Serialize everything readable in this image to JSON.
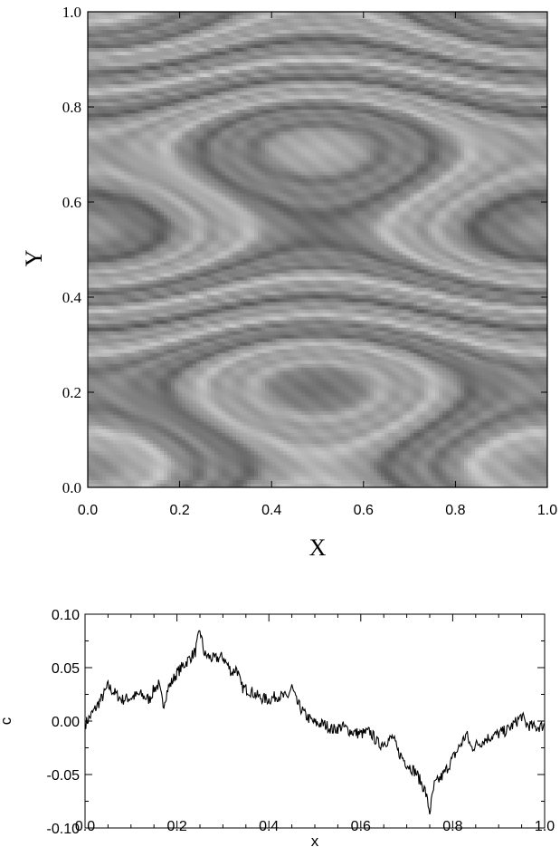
{
  "chart_data": [
    {
      "type": "heatmap",
      "title": "",
      "xlabel": "X",
      "ylabel": "Y",
      "xlim": [
        0.0,
        1.0
      ],
      "ylim": [
        0.0,
        1.0
      ],
      "x_ticks": [
        "0.0",
        "0.2",
        "0.4",
        "0.6",
        "0.8",
        "1.0"
      ],
      "y_ticks": [
        "0.0",
        "0.2",
        "0.4",
        "0.6",
        "0.8",
        "1.0"
      ],
      "colormap": "grayscale",
      "grid": false,
      "legend": "none",
      "description_of_field": "layered gray bands; tongue-like folds pointing right near y=0.5 and pointing left near y=0.0 and y=1.0, sloped dark and light streaks between them"
    },
    {
      "type": "line",
      "title": "",
      "xlabel": "x",
      "ylabel": "c",
      "xlim": [
        0.0,
        1.0
      ],
      "ylim": [
        -0.1,
        0.1
      ],
      "x_ticks": [
        "0.0",
        "0.2",
        "0.4",
        "0.6",
        "0.8",
        "1.0"
      ],
      "y_ticks": [
        "0.10",
        "0.05",
        "0.00",
        "-0.05",
        "-0.10"
      ],
      "grid": false,
      "legend": "none",
      "series": [
        {
          "color": "#000000",
          "x": [
            0.0,
            0.02,
            0.04,
            0.05,
            0.06,
            0.08,
            0.1,
            0.12,
            0.14,
            0.15,
            0.16,
            0.17,
            0.18,
            0.2,
            0.22,
            0.24,
            0.25,
            0.26,
            0.28,
            0.3,
            0.32,
            0.33,
            0.34,
            0.36,
            0.38,
            0.4,
            0.42,
            0.44,
            0.45,
            0.46,
            0.48,
            0.5,
            0.52,
            0.54,
            0.56,
            0.58,
            0.6,
            0.62,
            0.64,
            0.66,
            0.67,
            0.68,
            0.7,
            0.72,
            0.74,
            0.75,
            0.76,
            0.78,
            0.8,
            0.82,
            0.83,
            0.84,
            0.86,
            0.88,
            0.9,
            0.92,
            0.94,
            0.95,
            0.96,
            0.98,
            1.0
          ],
          "y": [
            -0.003,
            0.01,
            0.024,
            0.033,
            0.028,
            0.02,
            0.022,
            0.025,
            0.02,
            0.03,
            0.034,
            0.015,
            0.03,
            0.045,
            0.055,
            0.065,
            0.085,
            0.062,
            0.058,
            0.06,
            0.045,
            0.05,
            0.032,
            0.028,
            0.022,
            0.02,
            0.024,
            0.022,
            0.032,
            0.018,
            0.005,
            -0.002,
            -0.003,
            -0.008,
            -0.005,
            -0.01,
            -0.012,
            -0.01,
            -0.022,
            -0.018,
            -0.015,
            -0.028,
            -0.04,
            -0.048,
            -0.065,
            -0.085,
            -0.06,
            -0.05,
            -0.035,
            -0.02,
            -0.012,
            -0.025,
            -0.02,
            -0.015,
            -0.012,
            -0.008,
            0.0,
            0.005,
            -0.003,
            -0.006,
            -0.004
          ]
        }
      ]
    }
  ]
}
